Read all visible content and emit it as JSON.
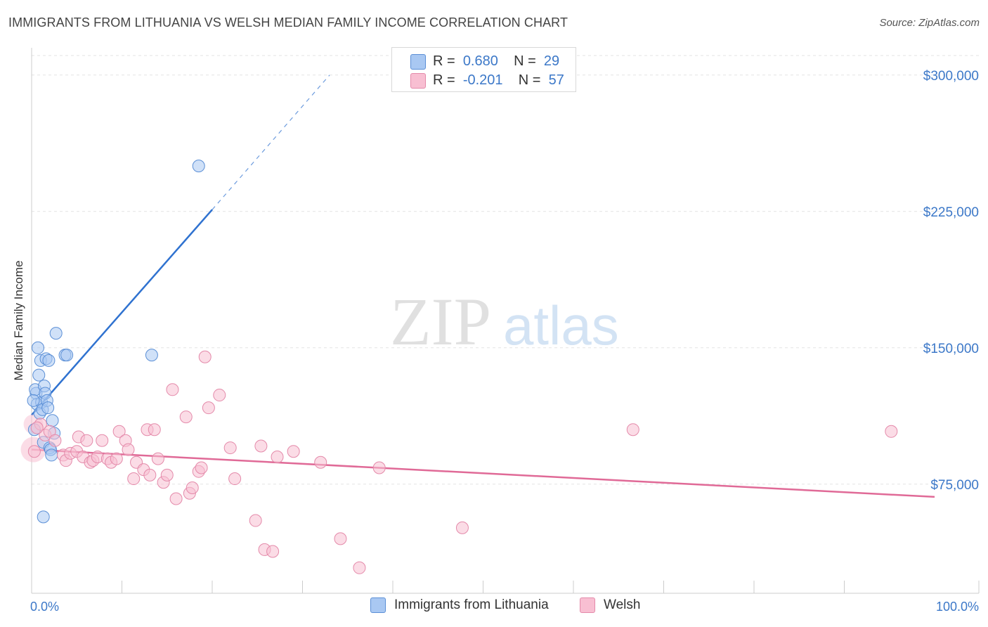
{
  "title": "IMMIGRANTS FROM LITHUANIA VS WELSH MEDIAN FAMILY INCOME CORRELATION CHART",
  "source": "Source: ZipAtlas.com",
  "watermark": {
    "zip": "ZIP",
    "atlas": "atlas"
  },
  "legend_top": [
    {
      "r_label": "R =",
      "r_value": "0.680",
      "n_label": "N =",
      "n_value": "29",
      "color": "#a9c8f2",
      "border": "#5b8fd6"
    },
    {
      "r_label": "R =",
      "r_value": "-0.201",
      "n_label": "N =",
      "n_value": "57",
      "color": "#f8bfd2",
      "border": "#e48aaa"
    }
  ],
  "legend_bottom": [
    "Immigrants from Lithuania",
    "Welsh"
  ],
  "chart_data": {
    "type": "scatter",
    "ylabel": "Median Family Income",
    "xlim": [
      0,
      100
    ],
    "ylim": [
      15000,
      315000
    ],
    "x_tick_labels": [
      "0.0%",
      "100.0%"
    ],
    "y_ticks": [
      75000,
      150000,
      225000,
      300000
    ],
    "y_tick_labels": [
      "$75,000",
      "$150,000",
      "$225,000",
      "$300,000"
    ],
    "series": [
      {
        "name": "Immigrants from Lithuania",
        "color": "#a9c8f2",
        "stroke": "#5b8fd6",
        "line_color": "#2f72d0",
        "trend": {
          "solid": [
            [
              0,
              113000
            ],
            [
              20,
              226000
            ]
          ],
          "dashed": [
            [
              20,
              226000
            ],
            [
              33,
              300000
            ]
          ]
        },
        "points": [
          [
            0.3,
            105000
          ],
          [
            0.5,
            125000
          ],
          [
            0.6,
            119000
          ],
          [
            0.4,
            127000
          ],
          [
            0.7,
            150000
          ],
          [
            0.8,
            135000
          ],
          [
            0.9,
            114000
          ],
          [
            1.0,
            143000
          ],
          [
            1.1,
            120000
          ],
          [
            1.2,
            116000
          ],
          [
            1.3,
            98000
          ],
          [
            1.4,
            129000
          ],
          [
            1.5,
            125000
          ],
          [
            1.6,
            144000
          ],
          [
            1.7,
            121000
          ],
          [
            1.8,
            117000
          ],
          [
            1.9,
            143000
          ],
          [
            2.0,
            95000
          ],
          [
            2.1,
            94000
          ],
          [
            2.2,
            91000
          ],
          [
            2.3,
            110000
          ],
          [
            2.5,
            103000
          ],
          [
            2.7,
            158000
          ],
          [
            3.7,
            146000
          ],
          [
            3.9,
            146000
          ],
          [
            13.3,
            146000
          ],
          [
            18.5,
            250000
          ],
          [
            1.3,
            57000
          ],
          [
            0.2,
            121000
          ]
        ]
      },
      {
        "name": "Welsh",
        "color": "#f8bfd2",
        "stroke": "#e48aaa",
        "line_color": "#e06a97",
        "trend": {
          "solid": [
            [
              0,
              94000
            ],
            [
              100,
              68000
            ]
          ]
        },
        "points": [
          [
            0.3,
            93000
          ],
          [
            1.0,
            108000
          ],
          [
            1.5,
            102000
          ],
          [
            2.0,
            104000
          ],
          [
            2.6,
            99000
          ],
          [
            3.5,
            91000
          ],
          [
            3.8,
            88000
          ],
          [
            4.3,
            92000
          ],
          [
            5.0,
            93000
          ],
          [
            5.2,
            101000
          ],
          [
            5.7,
            90000
          ],
          [
            6.1,
            99000
          ],
          [
            6.5,
            87000
          ],
          [
            6.8,
            88000
          ],
          [
            7.3,
            90000
          ],
          [
            7.8,
            99000
          ],
          [
            8.4,
            89000
          ],
          [
            8.8,
            87000
          ],
          [
            9.4,
            89000
          ],
          [
            9.7,
            104000
          ],
          [
            10.4,
            99000
          ],
          [
            10.7,
            94000
          ],
          [
            11.3,
            78000
          ],
          [
            11.6,
            87000
          ],
          [
            12.4,
            83000
          ],
          [
            12.8,
            105000
          ],
          [
            13.1,
            80000
          ],
          [
            13.6,
            105000
          ],
          [
            14.0,
            89000
          ],
          [
            14.6,
            76000
          ],
          [
            15.0,
            80000
          ],
          [
            15.6,
            127000
          ],
          [
            16.0,
            67000
          ],
          [
            17.1,
            112000
          ],
          [
            17.5,
            70000
          ],
          [
            17.8,
            73000
          ],
          [
            18.5,
            82000
          ],
          [
            18.8,
            84000
          ],
          [
            19.2,
            145000
          ],
          [
            19.6,
            117000
          ],
          [
            20.8,
            124000
          ],
          [
            22.0,
            95000
          ],
          [
            22.5,
            78000
          ],
          [
            24.8,
            55000
          ],
          [
            25.4,
            96000
          ],
          [
            25.8,
            39000
          ],
          [
            26.7,
            38000
          ],
          [
            27.2,
            90000
          ],
          [
            29.0,
            93000
          ],
          [
            32.0,
            87000
          ],
          [
            34.2,
            45000
          ],
          [
            36.3,
            29000
          ],
          [
            38.5,
            84000
          ],
          [
            47.7,
            51000
          ],
          [
            66.6,
            105000
          ],
          [
            95.2,
            104000
          ],
          [
            0.6,
            106000
          ]
        ]
      }
    ]
  }
}
